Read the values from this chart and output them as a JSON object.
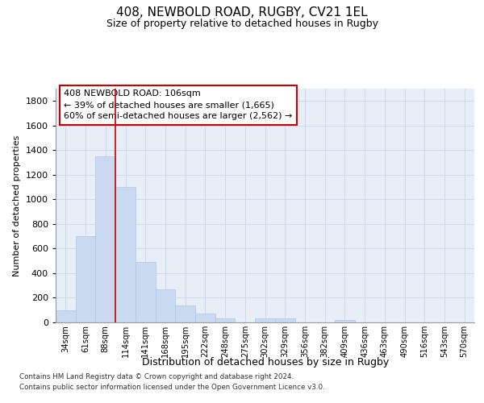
{
  "title1": "408, NEWBOLD ROAD, RUGBY, CV21 1EL",
  "title2": "Size of property relative to detached houses in Rugby",
  "xlabel": "Distribution of detached houses by size in Rugby",
  "ylabel": "Number of detached properties",
  "categories": [
    "34sqm",
    "61sqm",
    "88sqm",
    "114sqm",
    "141sqm",
    "168sqm",
    "195sqm",
    "222sqm",
    "248sqm",
    "275sqm",
    "302sqm",
    "329sqm",
    "356sqm",
    "382sqm",
    "409sqm",
    "436sqm",
    "463sqm",
    "490sqm",
    "516sqm",
    "543sqm",
    "570sqm"
  ],
  "values": [
    100,
    700,
    1350,
    1100,
    490,
    270,
    140,
    70,
    30,
    0,
    30,
    30,
    0,
    0,
    20,
    0,
    0,
    0,
    0,
    0,
    0
  ],
  "bar_color": "#c9d9f0",
  "bar_edge_color": "#aec6e8",
  "vline_x": 3,
  "vline_color": "#cc0000",
  "annotation_title": "408 NEWBOLD ROAD: 106sqm",
  "annotation_line1": "← 39% of detached houses are smaller (1,665)",
  "annotation_line2": "60% of semi-detached houses are larger (2,562) →",
  "annotation_box_color": "#cc0000",
  "ylim": [
    0,
    1900
  ],
  "yticks": [
    0,
    200,
    400,
    600,
    800,
    1000,
    1200,
    1400,
    1600,
    1800
  ],
  "footer1": "Contains HM Land Registry data © Crown copyright and database right 2024.",
  "footer2": "Contains public sector information licensed under the Open Government Licence v3.0.",
  "grid_color": "#c8d4e8",
  "bg_color": "#e8eef8"
}
